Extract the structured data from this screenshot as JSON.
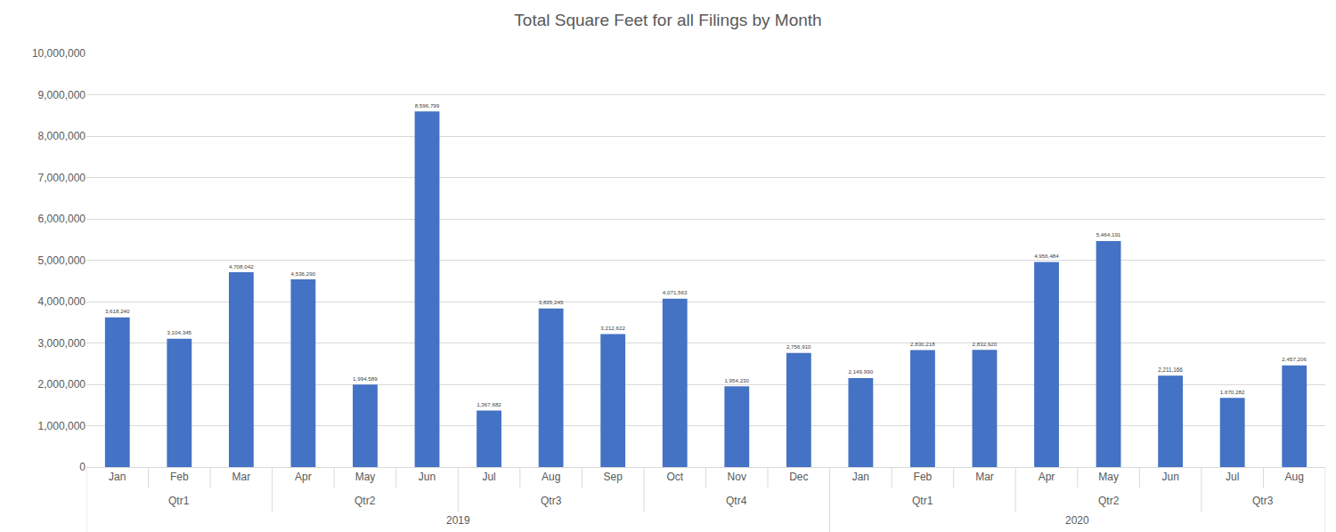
{
  "chart_data": {
    "type": "bar",
    "title": "Total Square Feet for all Filings by Month",
    "categories": [
      [
        "2019",
        "Qtr1",
        "Jan"
      ],
      [
        "2019",
        "Qtr1",
        "Feb"
      ],
      [
        "2019",
        "Qtr1",
        "Mar"
      ],
      [
        "2019",
        "Qtr2",
        "Apr"
      ],
      [
        "2019",
        "Qtr2",
        "May"
      ],
      [
        "2019",
        "Qtr2",
        "Jun"
      ],
      [
        "2019",
        "Qtr3",
        "Jul"
      ],
      [
        "2019",
        "Qtr3",
        "Aug"
      ],
      [
        "2019",
        "Qtr3",
        "Sep"
      ],
      [
        "2019",
        "Qtr4",
        "Oct"
      ],
      [
        "2019",
        "Qtr4",
        "Nov"
      ],
      [
        "2019",
        "Qtr4",
        "Dec"
      ],
      [
        "2020",
        "Qtr1",
        "Jan"
      ],
      [
        "2020",
        "Qtr1",
        "Feb"
      ],
      [
        "2020",
        "Qtr1",
        "Mar"
      ],
      [
        "2020",
        "Qtr2",
        "Apr"
      ],
      [
        "2020",
        "Qtr2",
        "May"
      ],
      [
        "2020",
        "Qtr2",
        "Jun"
      ],
      [
        "2020",
        "Qtr3",
        "Jul"
      ],
      [
        "2020",
        "Qtr3",
        "Aug"
      ]
    ],
    "values": [
      3618240,
      3104345,
      4708042,
      4536290,
      1994589,
      8596799,
      1367682,
      3835245,
      3212622,
      4071563,
      1954230,
      2756910,
      2149990,
      2830218,
      2832920,
      4956484,
      5464191,
      2211166,
      1670282,
      2457206
    ],
    "value_labels": [
      "3,618,240",
      "3,104,345",
      "4,708,042",
      "4,536,290",
      "1,994,589",
      "8,596,799",
      "1,367,682",
      "3,835,245",
      "3,212,622",
      "4,071,563",
      "1,954,230",
      "2,756,910",
      "2,149,990",
      "2,830,218",
      "2,832,920",
      "4,956,484",
      "5,464,191",
      "2,211,166",
      "1,670,282",
      "2,457,206"
    ],
    "color": "#4472c4",
    "ylim": [
      0,
      10000000
    ],
    "yticks": [
      0,
      {
        "value": 1000000,
        "label": "1,000,000"
      },
      {
        "value": 2000000,
        "label": "2,000,000"
      },
      {
        "value": 3000000,
        "label": "3,000,000"
      },
      {
        "value": 4000000,
        "label": "4,000,000"
      },
      {
        "value": 5000000,
        "label": "5,000,000"
      },
      {
        "value": 6000000,
        "label": "6,000,000"
      },
      {
        "value": 7000000,
        "label": "7,000,000"
      },
      {
        "value": 8000000,
        "label": "8,000,000"
      },
      {
        "value": 9000000,
        "label": "9,000,000"
      },
      {
        "value": 10000000,
        "label": "10,000,000"
      }
    ],
    "grid": true,
    "data_labels": true
  }
}
